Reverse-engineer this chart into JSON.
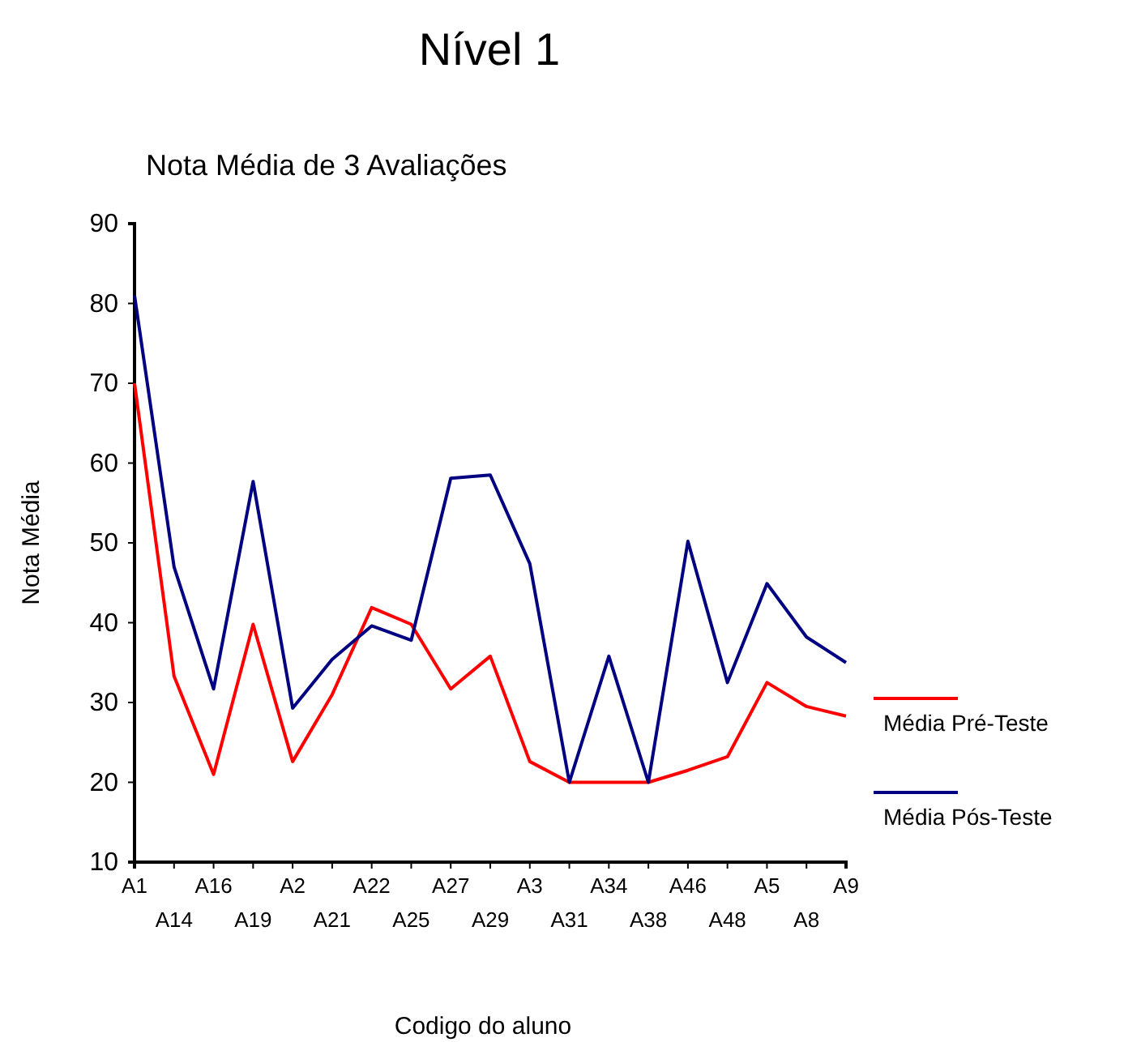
{
  "chart_data": {
    "type": "line",
    "title": "Nível 1",
    "subtitle": "Nota Média de 3 Avaliações",
    "xlabel": "Codigo do aluno",
    "ylabel": "Nota Média",
    "categories": [
      "A1",
      "A14",
      "A16",
      "A19",
      "A2",
      "A21",
      "A22",
      "A25",
      "A27",
      "A29",
      "A3",
      "A31",
      "A34",
      "A38",
      "A46",
      "A48",
      "A5",
      "A8",
      "A9"
    ],
    "series": [
      {
        "name": "Média Pré-Teste",
        "color": "#ff0000",
        "values": [
          70,
          33.3,
          21,
          39.8,
          22.6,
          31,
          41.9,
          39.8,
          31.7,
          35.8,
          22.6,
          20,
          20,
          20,
          21.5,
          23.2,
          32.5,
          29.5,
          28.3
        ]
      },
      {
        "name": "Média Pós-Teste",
        "color": "#000080",
        "values": [
          81,
          47,
          31.7,
          57.7,
          29.3,
          35.4,
          39.6,
          37.8,
          58.1,
          58.5,
          47.4,
          20,
          35.8,
          20,
          50.2,
          32.5,
          44.9,
          38.2,
          35
        ]
      }
    ],
    "ylim": [
      10,
      90
    ],
    "yticks": [
      10,
      20,
      30,
      40,
      50,
      60,
      70,
      80,
      90
    ],
    "grid": false,
    "legend": "right",
    "marker": "none",
    "line_style": "solid"
  }
}
